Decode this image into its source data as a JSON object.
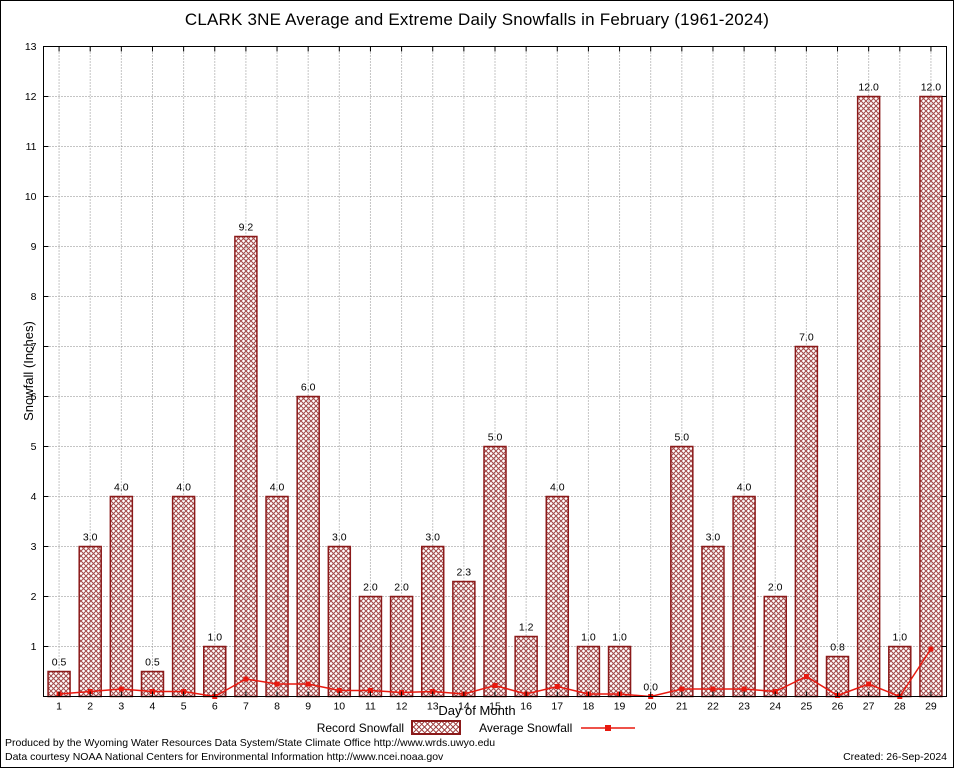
{
  "chart_data": {
    "type": "bar",
    "title": "CLARK 3NE Average and Extreme Daily Snowfalls in February (1961-2024)",
    "xlabel": "Day of Month",
    "ylabel": "Snowfall (Inches)",
    "ylim": [
      0,
      13
    ],
    "yticks": [
      1,
      2,
      3,
      4,
      5,
      6,
      7,
      8,
      9,
      10,
      11,
      12,
      13
    ],
    "categories": [
      "1",
      "2",
      "3",
      "4",
      "5",
      "6",
      "7",
      "8",
      "9",
      "10",
      "11",
      "12",
      "13",
      "14",
      "15",
      "16",
      "17",
      "18",
      "19",
      "20",
      "21",
      "22",
      "23",
      "24",
      "25",
      "26",
      "27",
      "28",
      "29"
    ],
    "series": [
      {
        "name": "Record Snowfall",
        "type": "bar",
        "values": [
          0.5,
          3.0,
          4.0,
          0.5,
          4.0,
          1.0,
          9.2,
          4.0,
          6.0,
          3.0,
          2.0,
          2.0,
          3.0,
          2.3,
          5.0,
          1.2,
          4.0,
          1.0,
          1.0,
          0.0,
          5.0,
          3.0,
          4.0,
          2.0,
          7.0,
          0.8,
          12.0,
          1.0,
          12.0
        ]
      },
      {
        "name": "Average Snowfall",
        "type": "line",
        "values": [
          0.05,
          0.1,
          0.15,
          0.1,
          0.1,
          0.0,
          0.35,
          0.25,
          0.25,
          0.12,
          0.12,
          0.08,
          0.1,
          0.05,
          0.22,
          0.05,
          0.2,
          0.05,
          0.05,
          0.0,
          0.15,
          0.15,
          0.15,
          0.1,
          0.4,
          0.02,
          0.25,
          0.0,
          0.95
        ]
      }
    ],
    "grid": true,
    "legend_position": "bottom-center"
  },
  "legend": {
    "record_label": "Record Snowfall",
    "average_label": "Average Snowfall"
  },
  "footer": {
    "line1": "Produced by the Wyoming Water Resources Data System/State Climate Office http://www.wrds.uwyo.edu",
    "line2": "Data courtesy NOAA National Centers for Environmental Information http://www.ncei.noaa.gov",
    "created": "Created: 26-Sep-2024"
  },
  "colors": {
    "bar_border": "#8b1a1a",
    "bar_hatch": "#a34a4a",
    "line": "#e8190f",
    "grid": "#8a8a8a",
    "text": "#000000",
    "background": "#ffffff"
  }
}
